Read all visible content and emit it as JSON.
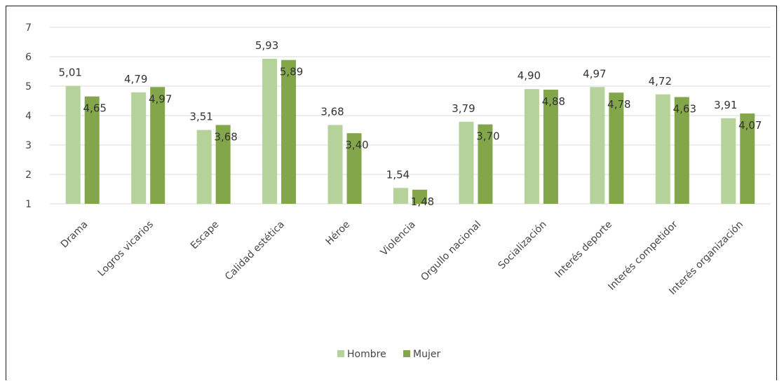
{
  "chart_data": {
    "type": "bar",
    "categories": [
      "Drama",
      "Logros vicarios",
      "Escape",
      "Calidad estética",
      "Héroe",
      "Violencia",
      "Orgullo nacional",
      "Socialización",
      "Interés deporte",
      "Interés competidor",
      "Interés organización"
    ],
    "series": [
      {
        "name": "Hombre",
        "color": "#b5d29a",
        "values": [
          5.01,
          4.79,
          3.51,
          5.93,
          3.68,
          1.54,
          3.79,
          4.9,
          4.97,
          4.72,
          3.91
        ],
        "labels": [
          "5,01",
          "4,79",
          "3,51",
          "5,93",
          "3,68",
          "1,54",
          "3,79",
          "4,90",
          "4,97",
          "4,72",
          "3,91"
        ]
      },
      {
        "name": "Mujer",
        "color": "#84a64a",
        "values": [
          4.65,
          4.97,
          3.68,
          5.89,
          3.4,
          1.48,
          3.7,
          4.88,
          4.78,
          4.63,
          4.07
        ],
        "labels": [
          "4,65",
          "4,97",
          "3,68",
          "5,89",
          "3,40",
          "1,48",
          "3,70",
          "4,88",
          "4,78",
          "4,63",
          "4,07"
        ]
      }
    ],
    "ylim": [
      1,
      7
    ],
    "yticks": [
      "1",
      "2",
      "3",
      "4",
      "5",
      "6",
      "7"
    ],
    "grid": true,
    "legend": "bottom-center",
    "title": "",
    "xlabel": "",
    "ylabel": ""
  }
}
